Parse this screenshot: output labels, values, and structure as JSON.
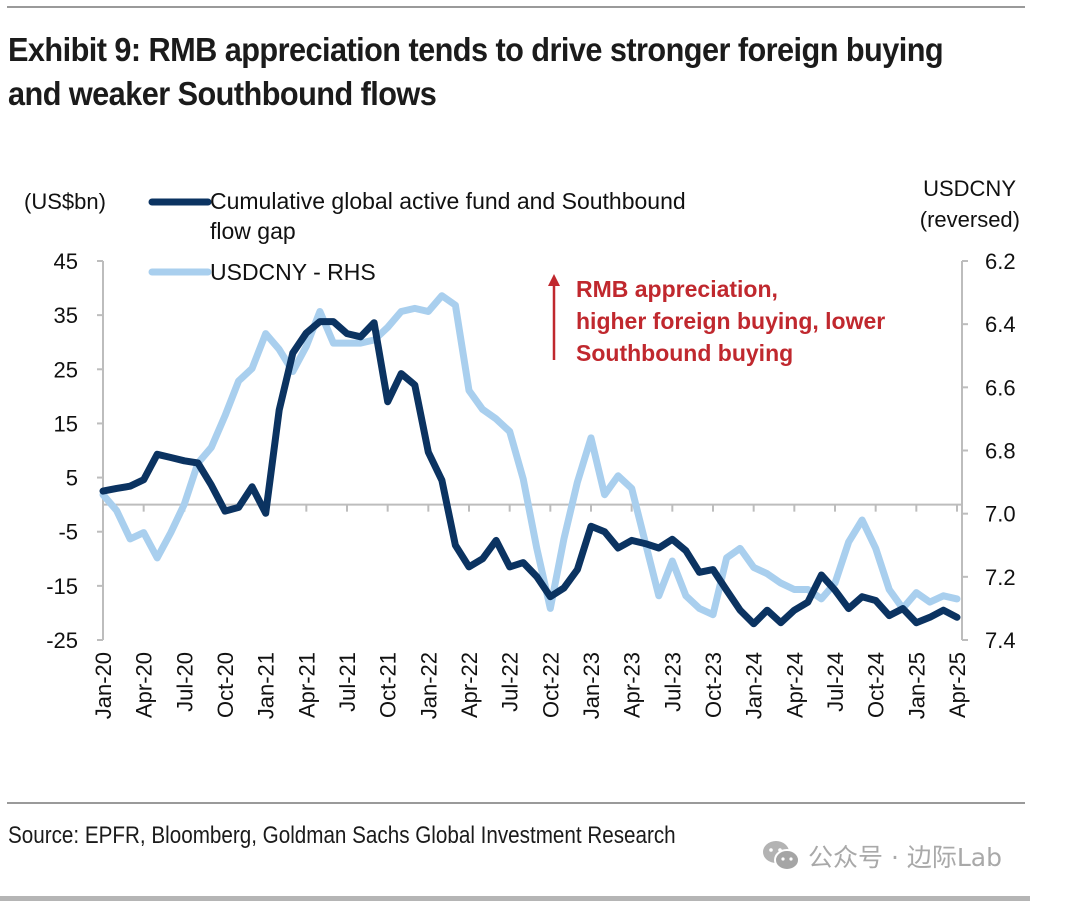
{
  "exhibit": {
    "title_line1": "Exhibit 9: RMB appreciation tends to drive stronger foreign buying",
    "title_line2": "and weaker Southbound flows",
    "source": "Source: EPFR, Bloomberg, Goldman Sachs Global Investment Research",
    "watermark": "公众号 · 边际Lab",
    "watermark_icon": "wechat-icon"
  },
  "colors": {
    "dark_series": "#0b3361",
    "light_series": "#a9cfee",
    "annotation": "#c0282e",
    "axis": "#bdbdbd"
  },
  "chart_data": {
    "type": "line",
    "title": "RMB appreciation tends to drive stronger foreign buying and weaker Southbound flows",
    "left_axis": {
      "label": "(US$bn)",
      "ylim": [
        -25,
        45
      ],
      "ticks": [
        45,
        35,
        25,
        15,
        5,
        -5,
        -15,
        -25
      ]
    },
    "right_axis": {
      "label_line1": "USDCNY",
      "label_line2": "(reversed)",
      "ylim": [
        6.2,
        7.4
      ],
      "reversed": true,
      "ticks": [
        "6.2",
        "6.4",
        "6.6",
        "6.8",
        "7.0",
        "7.2",
        "7.4"
      ]
    },
    "x_start": "Jan-20",
    "x_end": "Apr-25",
    "frequency": "monthly",
    "x_tick_labels": [
      "Jan-20",
      "Apr-20",
      "Jul-20",
      "Oct-20",
      "Jan-21",
      "Apr-21",
      "Jul-21",
      "Oct-21",
      "Jan-22",
      "Apr-22",
      "Jul-22",
      "Oct-22",
      "Jan-23",
      "Apr-23",
      "Jul-23",
      "Oct-23",
      "Jan-24",
      "Apr-24",
      "Jul-24",
      "Oct-24",
      "Jan-25",
      "Apr-25"
    ],
    "legend": {
      "placement": "top-left",
      "items": [
        {
          "label_line1": "Cumulative global active fund and Southbound",
          "label_line2": "flow gap",
          "series": "flow_gap"
        },
        {
          "label_line1": "USDCNY - RHS",
          "label_line2": "",
          "series": "usdcny"
        }
      ]
    },
    "annotation": {
      "lines": [
        "RMB appreciation,",
        "higher foreign buying, lower",
        "Southbound buying"
      ],
      "arrow": "up"
    },
    "grid": false,
    "series": [
      {
        "name": "Cumulative global active fund and Southbound flow gap",
        "key": "flow_gap",
        "axis": "left",
        "values": [
          2.5,
          3.0,
          3.4,
          4.6,
          9.3,
          8.7,
          8.1,
          7.7,
          3.6,
          -1.2,
          -0.5,
          3.3,
          -1.6,
          17.5,
          28.0,
          31.7,
          33.8,
          33.8,
          31.6,
          31.0,
          33.6,
          19.0,
          24.2,
          22.1,
          9.7,
          4.5,
          -7.5,
          -11.5,
          -10.0,
          -6.6,
          -11.5,
          -10.7,
          -13.3,
          -17.0,
          -15.4,
          -12.0,
          -4.0,
          -5.0,
          -8.0,
          -6.6,
          -7.2,
          -8.0,
          -6.4,
          -8.5,
          -12.5,
          -12.0,
          -15.8,
          -19.5,
          -22.0,
          -19.5,
          -21.8,
          -19.5,
          -18.0,
          -13.0,
          -15.8,
          -19.2,
          -17.0,
          -17.7,
          -20.5,
          -19.2,
          -21.8,
          -20.8,
          -19.5,
          -20.8
        ]
      },
      {
        "name": "USDCNY - RHS",
        "key": "usdcny",
        "axis": "right",
        "values": [
          6.94,
          6.99,
          7.08,
          7.06,
          7.14,
          7.06,
          6.97,
          6.84,
          6.79,
          6.69,
          6.58,
          6.54,
          6.43,
          6.48,
          6.55,
          6.47,
          6.36,
          6.46,
          6.46,
          6.46,
          6.45,
          6.41,
          6.36,
          6.35,
          6.36,
          6.31,
          6.34,
          6.61,
          6.67,
          6.7,
          6.74,
          6.89,
          7.11,
          7.3,
          7.08,
          6.9,
          6.76,
          6.94,
          6.88,
          6.92,
          7.09,
          7.26,
          7.15,
          7.26,
          7.3,
          7.32,
          7.14,
          7.11,
          7.17,
          7.19,
          7.22,
          7.24,
          7.24,
          7.27,
          7.22,
          7.09,
          7.02,
          7.11,
          7.24,
          7.3,
          7.25,
          7.28,
          7.26,
          7.27
        ]
      }
    ]
  }
}
